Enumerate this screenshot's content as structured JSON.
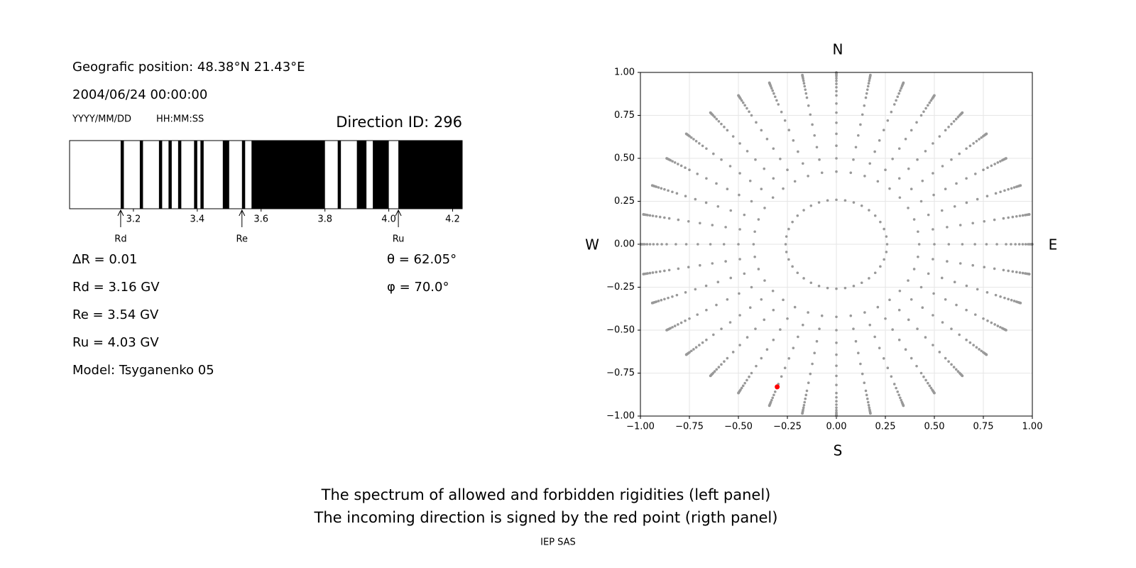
{
  "header": {
    "position": "Geografic position: 48.38°N 21.43°E",
    "datetime": "2004/06/24 00:00:00",
    "date_format": "YYYY/MM/DD",
    "time_format": "HH:MM:SS",
    "direction_id": "Direction ID: 296"
  },
  "chart_data": [
    {
      "type": "spectrum",
      "xlim": [
        3.0,
        4.23
      ],
      "xticks": [
        3.2,
        3.4,
        3.6,
        3.8,
        {
          "value": 4,
          "label": "4.0"
        },
        4.2
      ],
      "forbidden": [
        [
          3.16,
          3.17
        ],
        [
          3.22,
          3.23
        ],
        [
          3.28,
          3.29
        ],
        [
          3.31,
          3.32
        ],
        [
          3.34,
          3.35
        ],
        [
          3.39,
          3.4
        ],
        [
          3.41,
          3.42
        ],
        [
          3.48,
          3.5
        ],
        [
          3.54,
          3.55
        ],
        [
          3.57,
          3.8
        ],
        [
          3.84,
          3.85
        ],
        [
          3.9,
          3.93
        ],
        [
          3.95,
          4.0
        ],
        [
          4.03,
          4.23
        ]
      ],
      "color": "#000000",
      "markers": [
        {
          "label": "Rd",
          "value": 3.16
        },
        {
          "label": "Re",
          "value": 3.54
        },
        {
          "label": "Ru",
          "value": 4.03
        }
      ]
    },
    {
      "type": "scatter",
      "xlim": [
        -1,
        1
      ],
      "ylim": [
        -1,
        1
      ],
      "xticks": [
        {
          "value": -1,
          "label": "−1.00"
        },
        {
          "value": -0.75,
          "label": "−0.75"
        },
        {
          "value": -0.5,
          "label": "−0.50"
        },
        {
          "value": -0.25,
          "label": "−0.25"
        },
        {
          "value": 0,
          "label": "0.00"
        },
        {
          "value": 0.25,
          "label": "0.25"
        },
        {
          "value": 0.5,
          "label": "0.50"
        },
        {
          "value": 0.75,
          "label": "0.75"
        },
        {
          "value": 1,
          "label": "1.00"
        }
      ],
      "yticks": [
        {
          "value": -1,
          "label": "−1.00"
        },
        {
          "value": -0.75,
          "label": "−0.75"
        },
        {
          "value": -0.5,
          "label": "−0.50"
        },
        {
          "value": -0.25,
          "label": "−0.25"
        },
        {
          "value": 0,
          "label": "0.00"
        },
        {
          "value": 0.25,
          "label": "0.25"
        },
        {
          "value": 0.5,
          "label": "0.50"
        },
        {
          "value": 0.75,
          "label": "0.75"
        },
        {
          "value": 1,
          "label": "1.00"
        }
      ],
      "grid": true,
      "color": "#999999",
      "zenith": [
        15,
        25,
        30,
        35,
        40,
        45,
        50,
        55,
        60,
        63,
        66,
        69,
        72,
        75,
        78,
        80,
        82,
        84,
        86,
        88,
        90
      ],
      "azimuth": [
        0,
        10,
        20,
        30,
        40,
        50,
        60,
        70,
        80,
        90,
        100,
        110,
        120,
        130,
        140,
        150,
        160,
        170,
        180,
        190,
        200,
        210,
        220,
        230,
        240,
        250,
        260,
        270,
        280,
        290,
        300,
        310,
        320,
        330,
        340,
        350
      ],
      "highlight": {
        "zenith": 62.05,
        "azimuth": 70,
        "color": "#ff0000"
      },
      "compass": {
        "north": "N",
        "south": "S",
        "west": "W",
        "east": "E"
      }
    }
  ],
  "info": {
    "left": [
      "ΔR = 0.01",
      "Rd = 3.16 GV",
      "Re = 3.54 GV",
      "Ru = 4.03 GV",
      "Model: Tsyganenko 05"
    ],
    "right": [
      "θ = 62.05°",
      "φ = 70.0°"
    ]
  },
  "footer": {
    "lines": [
      "The spectrum of allowed and forbidden rigidities (left panel)",
      "The incoming direction is signed by the red point (rigth panel)"
    ],
    "credit": "IEP SAS"
  }
}
